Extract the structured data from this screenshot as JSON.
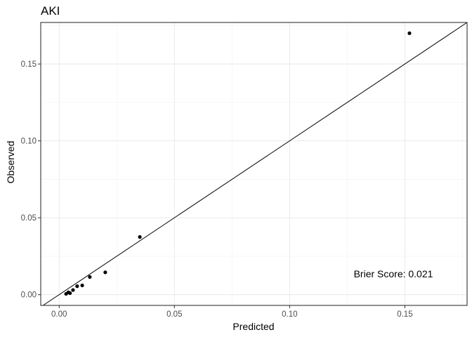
{
  "chart_data": {
    "type": "scatter",
    "title": "AKI",
    "xlabel": "Predicted",
    "ylabel": "Observed",
    "xlim": [
      -0.008,
      0.177
    ],
    "ylim": [
      -0.007,
      0.177
    ],
    "x_ticks": [
      0.0,
      0.05,
      0.1,
      0.15
    ],
    "x_tick_labels": [
      "0.00",
      "0.05",
      "0.10",
      "0.15"
    ],
    "y_ticks": [
      0.0,
      0.05,
      0.1,
      0.15
    ],
    "y_tick_labels": [
      "0.00",
      "0.05",
      "0.10",
      "0.15"
    ],
    "grid": true,
    "reference_line": "y = x",
    "points": [
      {
        "x": 0.003,
        "y": 0.0005
      },
      {
        "x": 0.004,
        "y": 0.0015
      },
      {
        "x": 0.0047,
        "y": 0.001
      },
      {
        "x": 0.006,
        "y": 0.003
      },
      {
        "x": 0.0078,
        "y": 0.0055
      },
      {
        "x": 0.01,
        "y": 0.006
      },
      {
        "x": 0.0133,
        "y": 0.0115
      },
      {
        "x": 0.02,
        "y": 0.0145
      },
      {
        "x": 0.035,
        "y": 0.0375
      },
      {
        "x": 0.152,
        "y": 0.17
      }
    ],
    "annotation": {
      "text": "Brier Score: 0.021",
      "x": 0.145,
      "y": 0.0135
    }
  }
}
